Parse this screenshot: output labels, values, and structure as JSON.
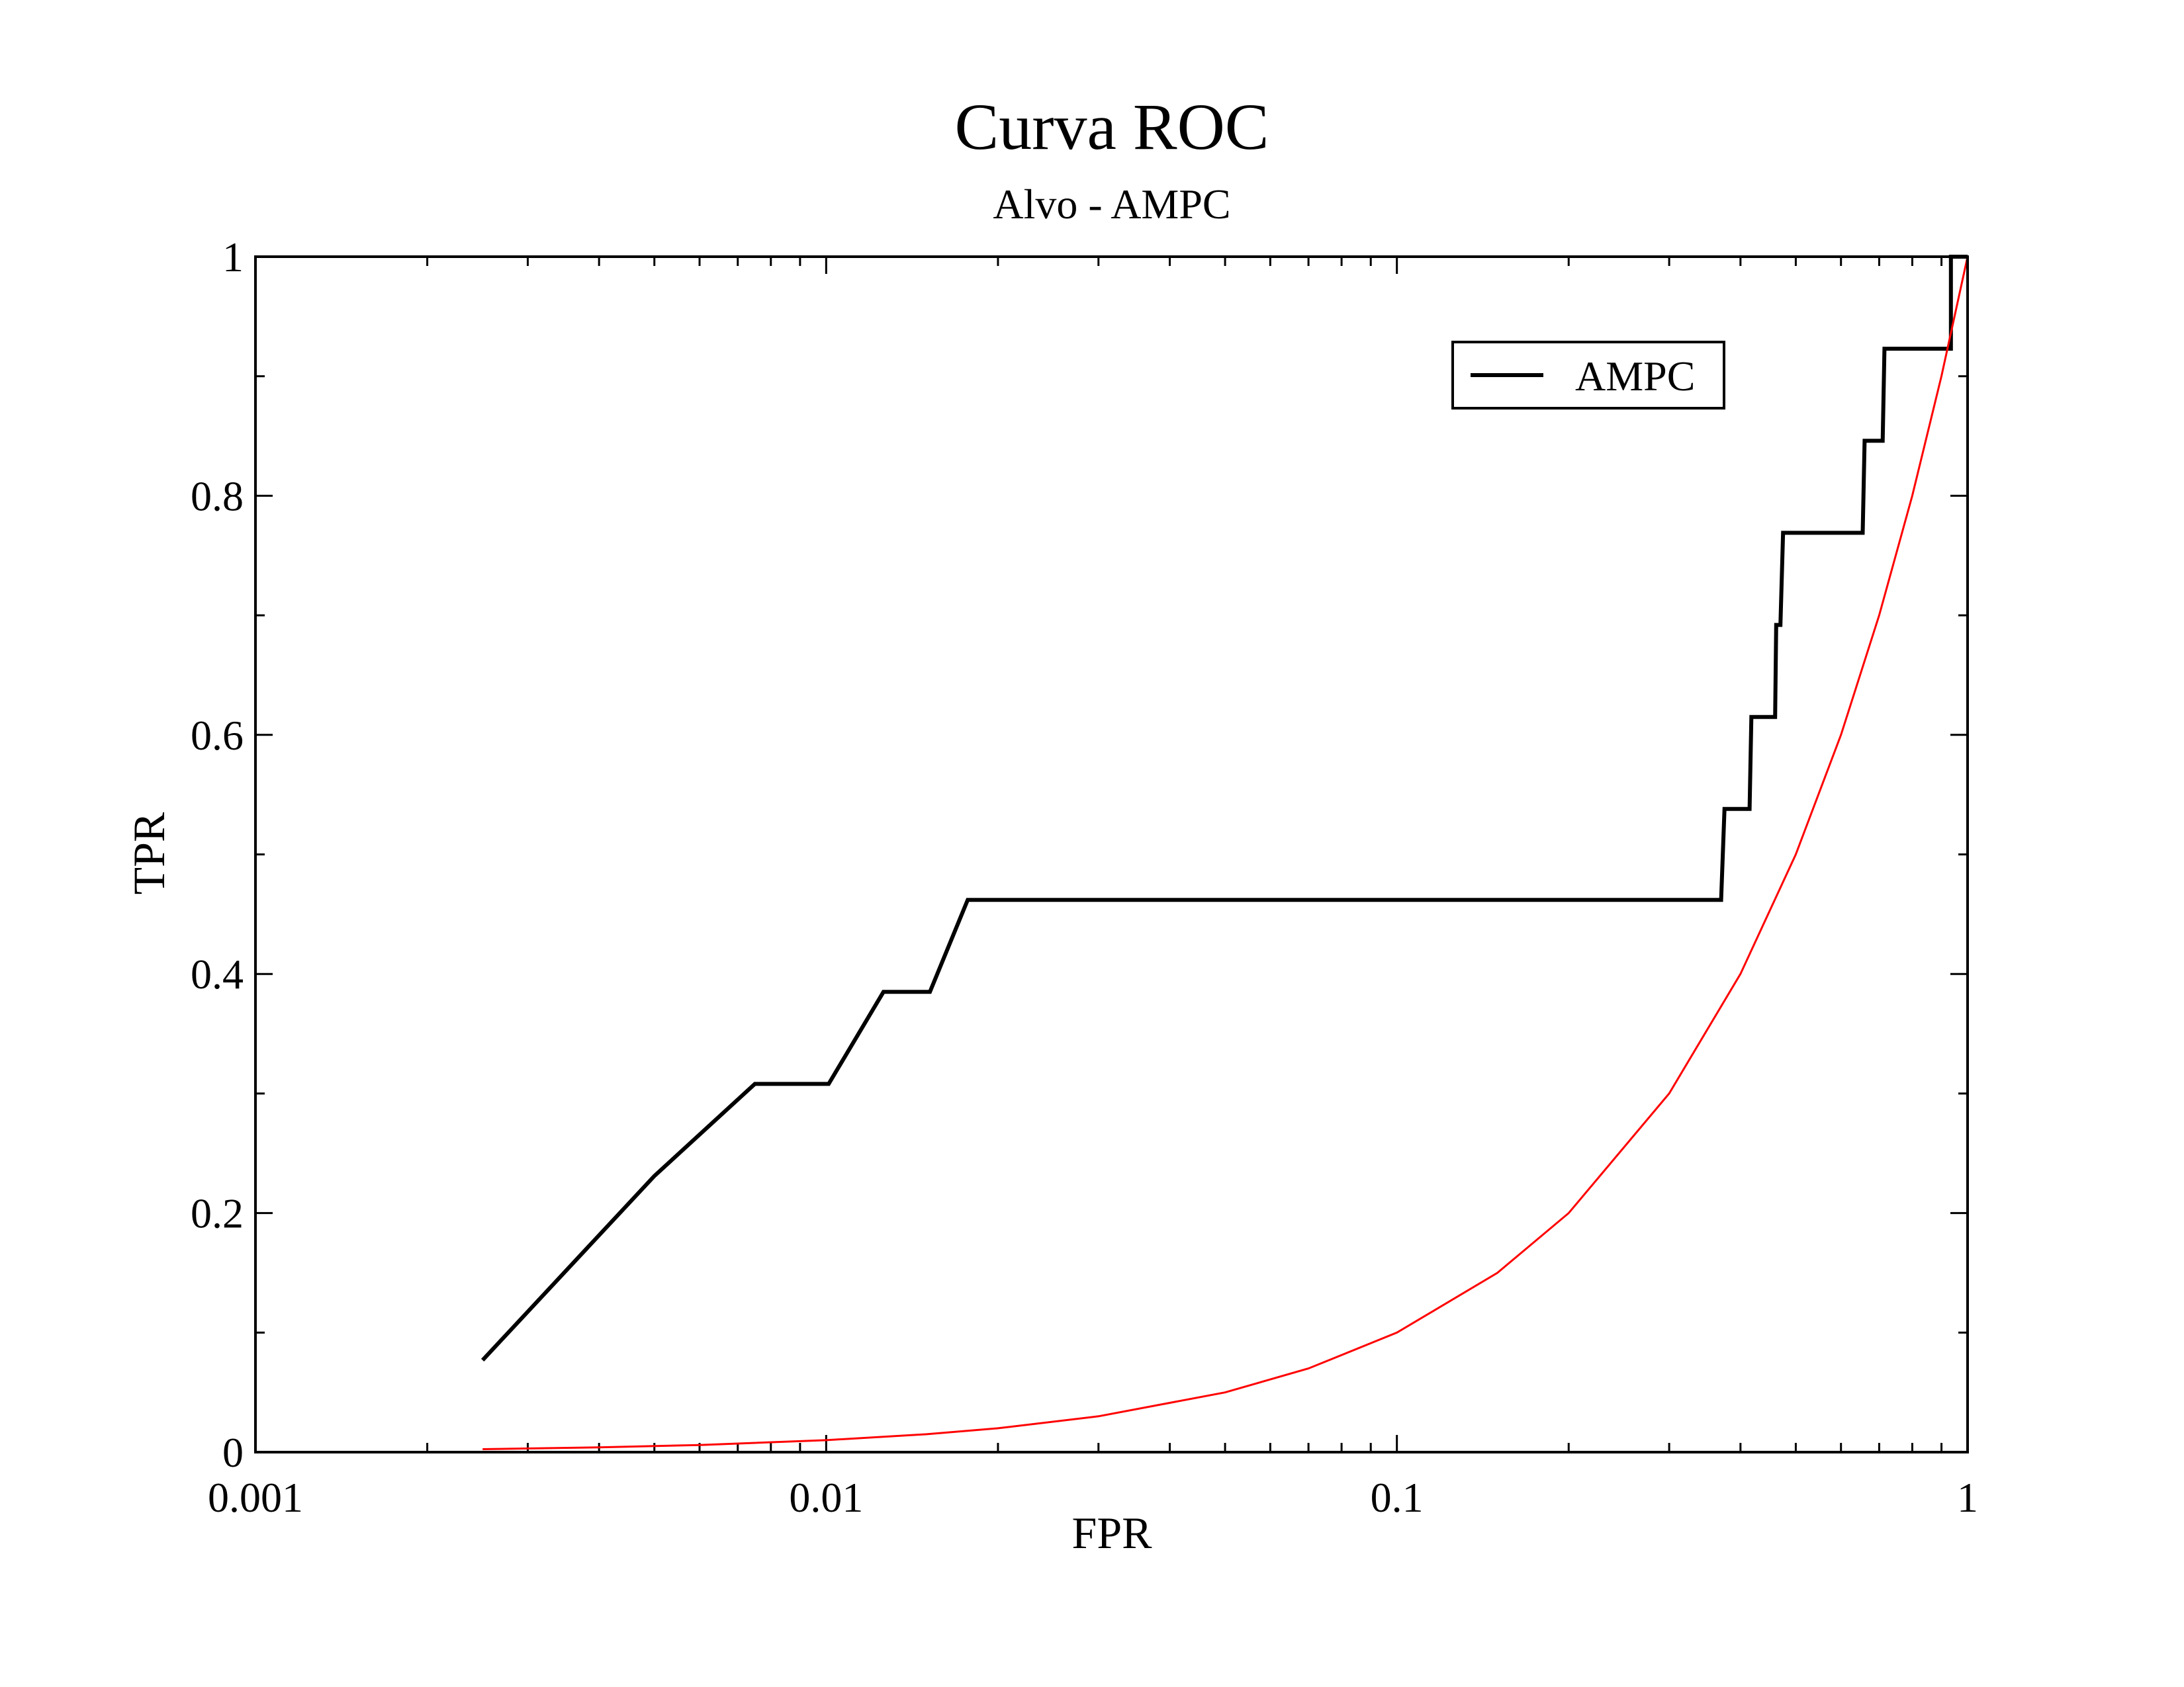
{
  "chart_data": {
    "type": "line",
    "title": "Curva ROC",
    "subtitle": "Alvo - AMPC",
    "xlabel": "FPR",
    "ylabel": "TPR",
    "xscale": "log",
    "xlim": [
      0.001,
      1
    ],
    "ylim": [
      0,
      1
    ],
    "xticks": [
      {
        "value": 0.001,
        "label": "0.001"
      },
      {
        "value": 0.01,
        "label": "0.01"
      },
      {
        "value": 0.1,
        "label": "0.1"
      },
      {
        "value": 1,
        "label": "1"
      }
    ],
    "yticks": [
      {
        "value": 0,
        "label": "0"
      },
      {
        "value": 0.2,
        "label": "0.2"
      },
      {
        "value": 0.4,
        "label": "0.4"
      },
      {
        "value": 0.6,
        "label": "0.6"
      },
      {
        "value": 0.8,
        "label": "0.8"
      },
      {
        "value": 1,
        "label": "1"
      }
    ],
    "grid": false,
    "legend": {
      "position": "top-right",
      "entries": [
        "AMPC"
      ]
    },
    "series": [
      {
        "name": "AMPC",
        "color": "#000000",
        "x": [
          0.0025,
          0.005,
          0.0075,
          0.0101,
          0.0126,
          0.0152,
          0.0177,
          0.0177,
          0.37,
          0.375,
          0.375,
          0.415,
          0.418,
          0.418,
          0.46,
          0.462,
          0.462,
          0.47,
          0.475,
          0.475,
          0.655,
          0.66,
          0.66,
          0.71,
          0.715,
          0.715,
          0.935,
          0.935,
          0.94,
          1.0
        ],
        "y": [
          0.077,
          0.231,
          0.308,
          0.308,
          0.385,
          0.385,
          0.462,
          0.462,
          0.462,
          0.538,
          0.538,
          0.538,
          0.615,
          0.615,
          0.615,
          0.692,
          0.692,
          0.692,
          0.769,
          0.769,
          0.769,
          0.846,
          0.846,
          0.846,
          0.923,
          0.923,
          0.923,
          1.0,
          1.0,
          1.0
        ]
      },
      {
        "color": "#ff0000",
        "x": [
          0.0025,
          0.004,
          0.006,
          0.01,
          0.015,
          0.02,
          0.03,
          0.05,
          0.07,
          0.1,
          0.15,
          0.2,
          0.3,
          0.4,
          0.5,
          0.6,
          0.7,
          0.8,
          0.9,
          1.0
        ],
        "y": [
          0.0025,
          0.004,
          0.006,
          0.01,
          0.015,
          0.02,
          0.03,
          0.05,
          0.07,
          0.1,
          0.15,
          0.2,
          0.3,
          0.4,
          0.5,
          0.6,
          0.7,
          0.8,
          0.9,
          1.0
        ]
      }
    ]
  }
}
